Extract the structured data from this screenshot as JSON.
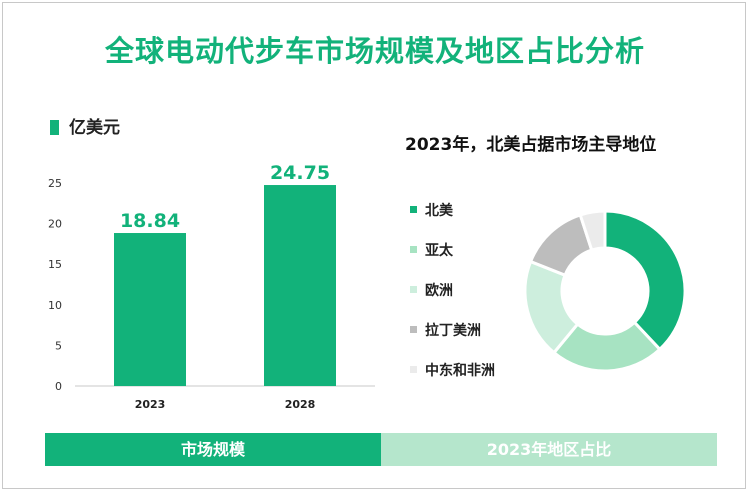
{
  "title": "全球电动代步车市场规模及地区占比分析",
  "bar_section": {
    "unit_label": "亿美元"
  },
  "pie_section": {
    "title": "2023年，北美占据市场主导地位"
  },
  "bottom_bars": {
    "left_label": "市场规模",
    "right_label": "2023年地区占比"
  },
  "colors": {
    "accent": "#12b27a",
    "light": "#b5e6cc"
  },
  "chart_data": [
    {
      "type": "bar",
      "categories": [
        "2023",
        "2028"
      ],
      "values": [
        18.84,
        24.75
      ],
      "data_labels": [
        "18.84",
        "24.75"
      ],
      "ylabel": "亿美元",
      "ylim": [
        0,
        25
      ],
      "yticks": [
        0,
        5,
        10,
        15,
        20,
        25
      ],
      "grid": false,
      "color": "#12b27a"
    },
    {
      "type": "pie",
      "title": "2023年，北美占据市场主导地位",
      "donut": true,
      "legend_position": "left",
      "slices": [
        {
          "label": "北美",
          "value": 0.38,
          "color": "#12b27a"
        },
        {
          "label": "亚太",
          "value": 0.23,
          "color": "#a7e3c2"
        },
        {
          "label": "欧洲",
          "value": 0.2,
          "color": "#cdeedd"
        },
        {
          "label": "拉丁美洲",
          "value": 0.14,
          "color": "#bdbdbd"
        },
        {
          "label": "中东和非洲",
          "value": 0.05,
          "color": "#ebebeb"
        }
      ]
    }
  ]
}
